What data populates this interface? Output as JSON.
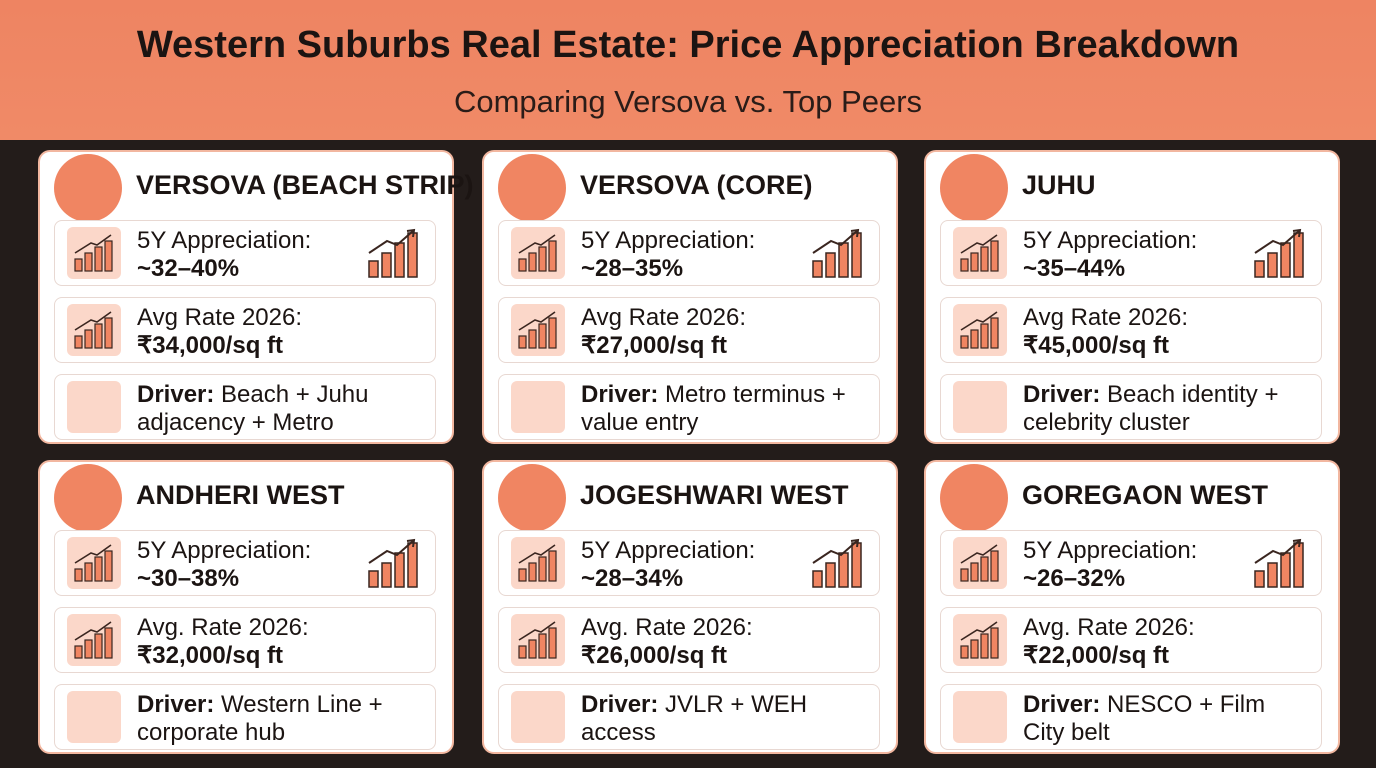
{
  "header": {
    "title": "Western Suburbs Real Estate: Price Appreciation Breakdown",
    "subtitle": "Comparing Versova vs. Top Peers"
  },
  "cards": [
    {
      "name": "VERSOVA (BEACH STRIP)",
      "appreciation_label": "5Y Appreciation:",
      "appreciation": "~32–40%",
      "rate_label": "Avg Rate 2026:",
      "rate": "₹34,000/sq ft",
      "driver_label": "Driver:",
      "driver": "Beach + Juhu adjacency + Metro"
    },
    {
      "name": "VERSOVA (CORE)",
      "appreciation_label": "5Y Appreciation:",
      "appreciation": "~28–35%",
      "rate_label": "Avg Rate 2026:",
      "rate": "₹27,000/sq ft",
      "driver_label": "Driver:",
      "driver": "Metro terminus + value entry"
    },
    {
      "name": "JUHU",
      "appreciation_label": "5Y Appreciation:",
      "appreciation": "~35–44%",
      "rate_label": "Avg Rate 2026:",
      "rate": "₹45,000/sq ft",
      "driver_label": "Driver:",
      "driver": "Beach identity + celebrity cluster"
    },
    {
      "name": "ANDHERI WEST",
      "appreciation_label": "5Y Appreciation:",
      "appreciation": "~30–38%",
      "rate_label": "Avg.  Rate 2026:",
      "rate": "₹32,000/sq ft",
      "driver_label": "Driver:",
      "driver": "Western Line + corporate hub"
    },
    {
      "name": "JOGESHWARI WEST",
      "appreciation_label": "5Y Appreciation:",
      "appreciation": "~28–34%",
      "rate_label": "Avg.  Rate 2026:",
      "rate": "₹26,000/sq ft",
      "driver_label": "Driver:",
      "driver": "JVLR + WEH access"
    },
    {
      "name": "GOREGAON WEST",
      "appreciation_label": "5Y Appreciation:",
      "appreciation": "~26–32%",
      "rate_label": "Avg.  Rate 2026:",
      "rate": "₹22,000/sq ft",
      "driver_label": "Driver:",
      "driver": "NESCO + Film City belt"
    }
  ]
}
